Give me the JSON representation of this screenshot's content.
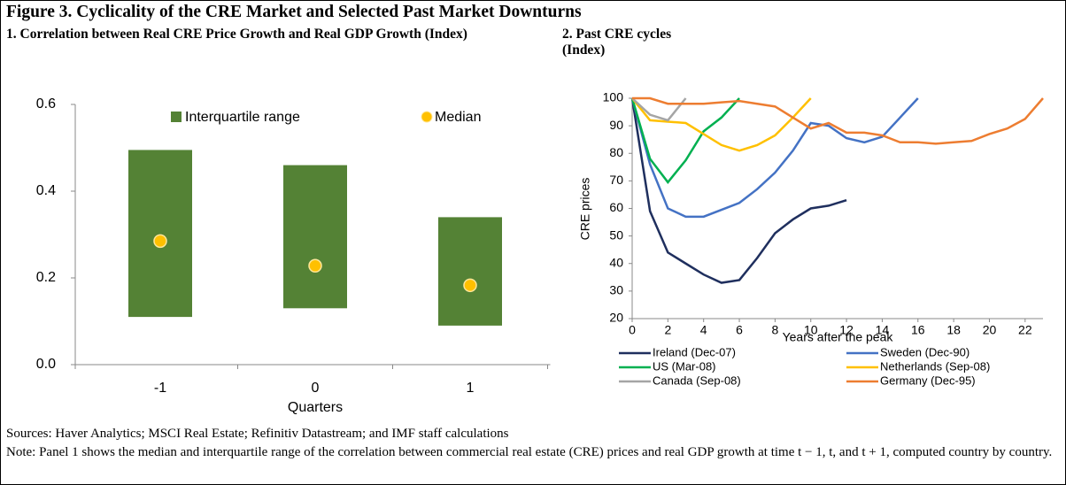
{
  "title": "Figure 3. Cyclicality of the CRE Market and Selected Past Market Downturns",
  "sources": "Sources: Haver Analytics; MSCI Real Estate; Refinitiv Datastream; and IMF staff calculations",
  "note": "Note: Panel 1 shows the median and interquartile range of the correlation between commercial real estate (CRE) prices and real GDP growth at time t − 1, t, and t + 1, computed country by country.",
  "chart_data": [
    {
      "type": "range_bar",
      "title": "1. Correlation between Real CRE Price Growth and Real GDP Growth (Index)",
      "categories": [
        "-1",
        "0",
        "1"
      ],
      "xlabel": "Quarters",
      "ylim": [
        0,
        0.6
      ],
      "yticks": [
        {
          "value": 0,
          "label": "0.0"
        },
        0.2,
        0.4,
        0.6
      ],
      "series": [
        {
          "name": "Interquartile range",
          "color": "#548235",
          "low": [
            0.11,
            0.13,
            0.09
          ],
          "high": [
            0.495,
            0.46,
            0.34
          ]
        },
        {
          "name": "Median",
          "color": "#ffc000",
          "values": [
            0.285,
            0.228,
            0.183
          ]
        }
      ]
    },
    {
      "type": "line",
      "title": "2. Past CRE cycles (Index)",
      "xlabel": "Years after the peak",
      "ylabel": "CRE prices",
      "x": [
        0,
        1,
        2,
        3,
        4,
        5,
        6,
        7,
        8,
        9,
        10,
        11,
        12,
        13,
        14,
        15,
        16,
        17,
        18,
        19,
        20,
        21,
        22,
        23
      ],
      "xlim": [
        0,
        23
      ],
      "xticks": [
        0,
        2,
        4,
        6,
        8,
        10,
        12,
        14,
        16,
        18,
        20,
        22
      ],
      "ylim": [
        20,
        100
      ],
      "yticks": [
        20,
        30,
        40,
        50,
        60,
        70,
        80,
        90,
        100
      ],
      "series": [
        {
          "name": "Ireland (Dec-07)",
          "color": "#1f2f5e",
          "values": [
            100,
            59,
            44,
            40,
            36,
            33,
            34,
            42,
            51,
            56,
            60,
            61,
            63,
            null,
            null,
            null,
            null,
            null,
            null,
            null,
            null,
            null,
            null,
            null
          ]
        },
        {
          "name": "Sweden (Dec-90)",
          "color": "#4472c4",
          "values": [
            100,
            76,
            60,
            57,
            57,
            59.5,
            62,
            67,
            73,
            81,
            91,
            90,
            85.5,
            84,
            86,
            93,
            100,
            null,
            null,
            null,
            null,
            null,
            null,
            null
          ]
        },
        {
          "name": "US (Mar-08)",
          "color": "#00b050",
          "values": [
            100,
            78,
            69.5,
            77.5,
            88,
            93,
            100,
            null,
            null,
            null,
            null,
            null,
            null,
            null,
            null,
            null,
            null,
            null,
            null,
            null,
            null,
            null,
            null,
            null
          ]
        },
        {
          "name": "Netherlands (Sep-08)",
          "color": "#ffc000",
          "values": [
            100,
            92,
            91.5,
            91,
            87,
            83,
            81,
            83,
            86.5,
            93,
            100,
            null,
            null,
            null,
            null,
            null,
            null,
            null,
            null,
            null,
            null,
            null,
            null,
            null
          ]
        },
        {
          "name": "Canada (Sep-08)",
          "color": "#a5a5a5",
          "values": [
            100,
            94,
            92,
            100,
            null,
            null,
            null,
            null,
            null,
            null,
            null,
            null,
            null,
            null,
            null,
            null,
            null,
            null,
            null,
            null,
            null,
            null,
            null,
            null
          ]
        },
        {
          "name": "Germany (Dec-95)",
          "color": "#ed7d31",
          "values": [
            100,
            100,
            98,
            98,
            98,
            98.5,
            99,
            98,
            97,
            93,
            89,
            91,
            87.5,
            87.5,
            86.5,
            84,
            84,
            83.5,
            84,
            84.5,
            87,
            89,
            92.5,
            100
          ]
        }
      ]
    }
  ]
}
